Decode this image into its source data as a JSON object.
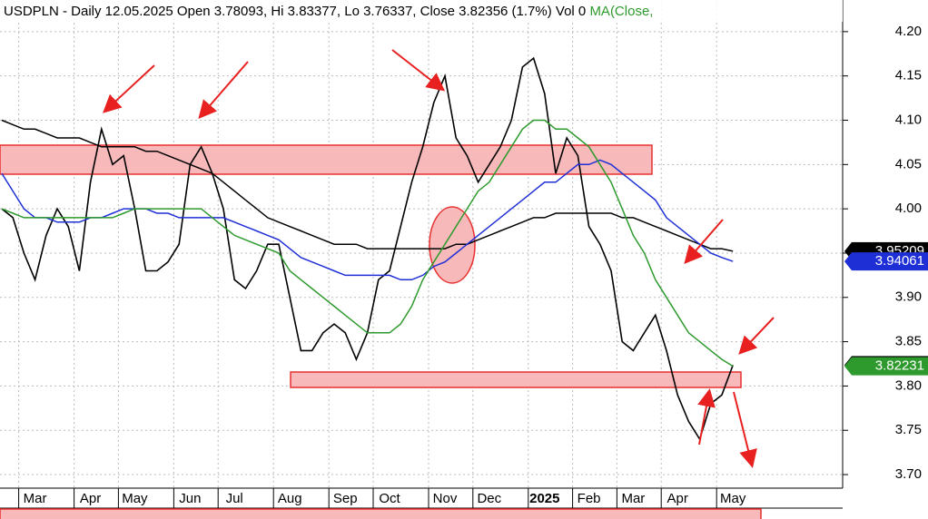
{
  "chart_data": {
    "type": "line",
    "title": "USDPLN - Daily 12.05.2025 Open 3.78093, Hi 3.83377, Lo 3.76337, Close 3.82356 (1.7%) Vol 0",
    "title_suffix": "MA(Close,",
    "categories": [
      null,
      null,
      null,
      "Mar",
      null,
      null,
      null,
      null,
      "Apr",
      null,
      null,
      null,
      "May",
      null,
      null,
      null,
      null,
      "Jun",
      null,
      null,
      null,
      "Jul",
      null,
      null,
      null,
      null,
      "Aug",
      null,
      null,
      null,
      null,
      "Sep",
      null,
      null,
      null,
      "Oct",
      null,
      null,
      null,
      null,
      "Nov",
      null,
      null,
      null,
      "Dec",
      null,
      null,
      null,
      null,
      "2025",
      null,
      null,
      null,
      "Feb",
      null,
      null,
      null,
      "Mar",
      null,
      null,
      null,
      "Apr",
      null,
      null,
      null,
      null,
      "May"
    ],
    "series": [
      {
        "color": "#000000",
        "values": [
          4.0,
          3.99,
          3.95,
          3.92,
          3.97,
          4.0,
          3.98,
          3.93,
          4.03,
          4.09,
          4.05,
          4.06,
          4.0,
          3.93,
          3.93,
          3.94,
          3.96,
          4.05,
          4.07,
          4.04,
          4.0,
          3.92,
          3.91,
          3.93,
          3.96,
          3.96,
          3.9,
          3.84,
          3.84,
          3.86,
          3.87,
          3.86,
          3.83,
          3.86,
          3.92,
          3.93,
          3.98,
          4.03,
          4.07,
          4.12,
          4.15,
          4.08,
          4.06,
          4.03,
          4.05,
          4.07,
          4.1,
          4.16,
          4.17,
          4.13,
          4.04,
          4.08,
          4.06,
          3.98,
          3.96,
          3.93,
          3.85,
          3.84,
          3.86,
          3.88,
          3.84,
          3.79,
          3.76,
          3.74,
          3.78,
          3.79,
          3.82356
        ]
      },
      {
        "color": "#000000",
        "values": [
          4.1,
          4.095,
          4.09,
          4.09,
          4.085,
          4.08,
          4.08,
          4.08,
          4.075,
          4.07,
          4.07,
          4.07,
          4.07,
          4.065,
          4.065,
          4.06,
          4.055,
          4.05,
          4.045,
          4.04,
          4.03,
          4.02,
          4.01,
          4.0,
          3.99,
          3.985,
          3.98,
          3.975,
          3.97,
          3.965,
          3.96,
          3.96,
          3.96,
          3.955,
          3.955,
          3.955,
          3.955,
          3.955,
          3.955,
          3.955,
          3.955,
          3.96,
          3.96,
          3.965,
          3.97,
          3.975,
          3.98,
          3.985,
          3.99,
          3.99,
          3.995,
          3.995,
          3.995,
          3.995,
          3.995,
          3.995,
          3.99,
          3.99,
          3.985,
          3.98,
          3.975,
          3.97,
          3.965,
          3.96,
          3.955,
          3.955,
          3.95209
        ]
      },
      {
        "color": "#1f2fd6",
        "values": [
          4.04,
          4.02,
          4.0,
          3.99,
          3.99,
          3.985,
          3.985,
          3.985,
          3.99,
          3.99,
          3.995,
          4.0,
          4.0,
          4.0,
          3.995,
          3.995,
          3.99,
          3.99,
          3.99,
          3.99,
          3.99,
          3.985,
          3.98,
          3.975,
          3.97,
          3.965,
          3.955,
          3.945,
          3.94,
          3.935,
          3.93,
          3.925,
          3.925,
          3.925,
          3.925,
          3.925,
          3.92,
          3.92,
          3.925,
          3.935,
          3.94,
          3.95,
          3.96,
          3.97,
          3.98,
          3.99,
          4.0,
          4.01,
          4.02,
          4.03,
          4.03,
          4.04,
          4.05,
          4.05,
          4.055,
          4.05,
          4.04,
          4.03,
          4.02,
          4.01,
          3.99,
          3.98,
          3.97,
          3.96,
          3.95,
          3.945,
          3.94061
        ]
      },
      {
        "color": "#2e9a2e",
        "values": [
          4.0,
          3.995,
          3.99,
          3.99,
          3.99,
          3.99,
          3.99,
          3.99,
          3.99,
          3.99,
          3.99,
          3.995,
          4.0,
          4.0,
          4.0,
          4.0,
          4.0,
          4.0,
          4.0,
          3.99,
          3.98,
          3.97,
          3.965,
          3.96,
          3.955,
          3.95,
          3.93,
          3.92,
          3.91,
          3.9,
          3.89,
          3.88,
          3.87,
          3.86,
          3.86,
          3.86,
          3.87,
          3.89,
          3.92,
          3.94,
          3.96,
          3.98,
          4.0,
          4.02,
          4.03,
          4.05,
          4.07,
          4.09,
          4.1,
          4.1,
          4.09,
          4.09,
          4.08,
          4.07,
          4.05,
          4.03,
          4.0,
          3.97,
          3.95,
          3.92,
          3.9,
          3.88,
          3.86,
          3.85,
          3.84,
          3.83,
          3.82231
        ]
      }
    ],
    "price_tags": [
      {
        "value": 3.95209,
        "color": "#000000"
      },
      {
        "value": 3.94061,
        "color": "#1f2fd6"
      },
      {
        "value": 3.82356,
        "color": "#000000"
      },
      {
        "value": 3.82231,
        "color": "#2e9a2e"
      }
    ],
    "ylim": [
      3.6847,
      4.2357
    ],
    "yticks": [
      {
        "value": 3.7,
        "label": "3.70"
      },
      3.75,
      {
        "value": 3.8,
        "label": "3.80"
      },
      3.85,
      {
        "value": 3.9,
        "label": "3.90"
      },
      3.95,
      {
        "value": 4.0,
        "label": "4.00"
      },
      4.05,
      {
        "value": 4.1,
        "label": "4.10"
      },
      4.15,
      {
        "value": 4.2,
        "label": "4.20"
      }
    ],
    "grid": true
  }
}
